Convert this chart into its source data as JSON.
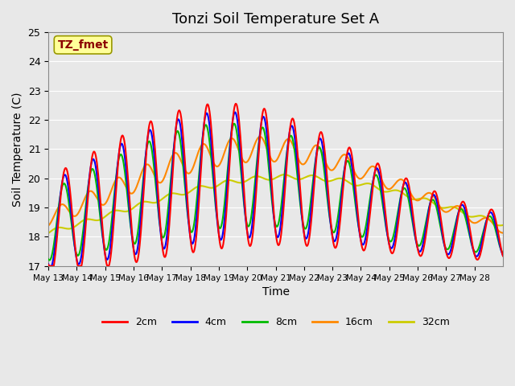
{
  "title": "Tonzi Soil Temperature Set A",
  "xlabel": "Time",
  "ylabel": "Soil Temperature (C)",
  "ylim": [
    17.0,
    25.0
  ],
  "yticks": [
    17.0,
    18.0,
    19.0,
    20.0,
    21.0,
    22.0,
    23.0,
    24.0,
    25.0
  ],
  "annotation_text": "TZ_fmet",
  "annotation_color": "#8B0000",
  "annotation_bg": "#FFFF99",
  "bg_color": "#E8E8E8",
  "series_colors": {
    "2cm": "#FF0000",
    "4cm": "#0000FF",
    "8cm": "#00BB00",
    "16cm": "#FF8800",
    "32cm": "#CCCC00"
  },
  "line_width": 1.5,
  "xtick_labels": [
    "May 13",
    "May 14",
    "May 15",
    "May 16",
    "May 17",
    "May 18",
    "May 19",
    "May 20",
    "May 21",
    "May 22",
    "May 23",
    "May 24",
    "May 25",
    "May 26",
    "May 27",
    "May 28"
  ],
  "legend_labels": [
    "2cm",
    "4cm",
    "8cm",
    "16cm",
    "32cm"
  ]
}
